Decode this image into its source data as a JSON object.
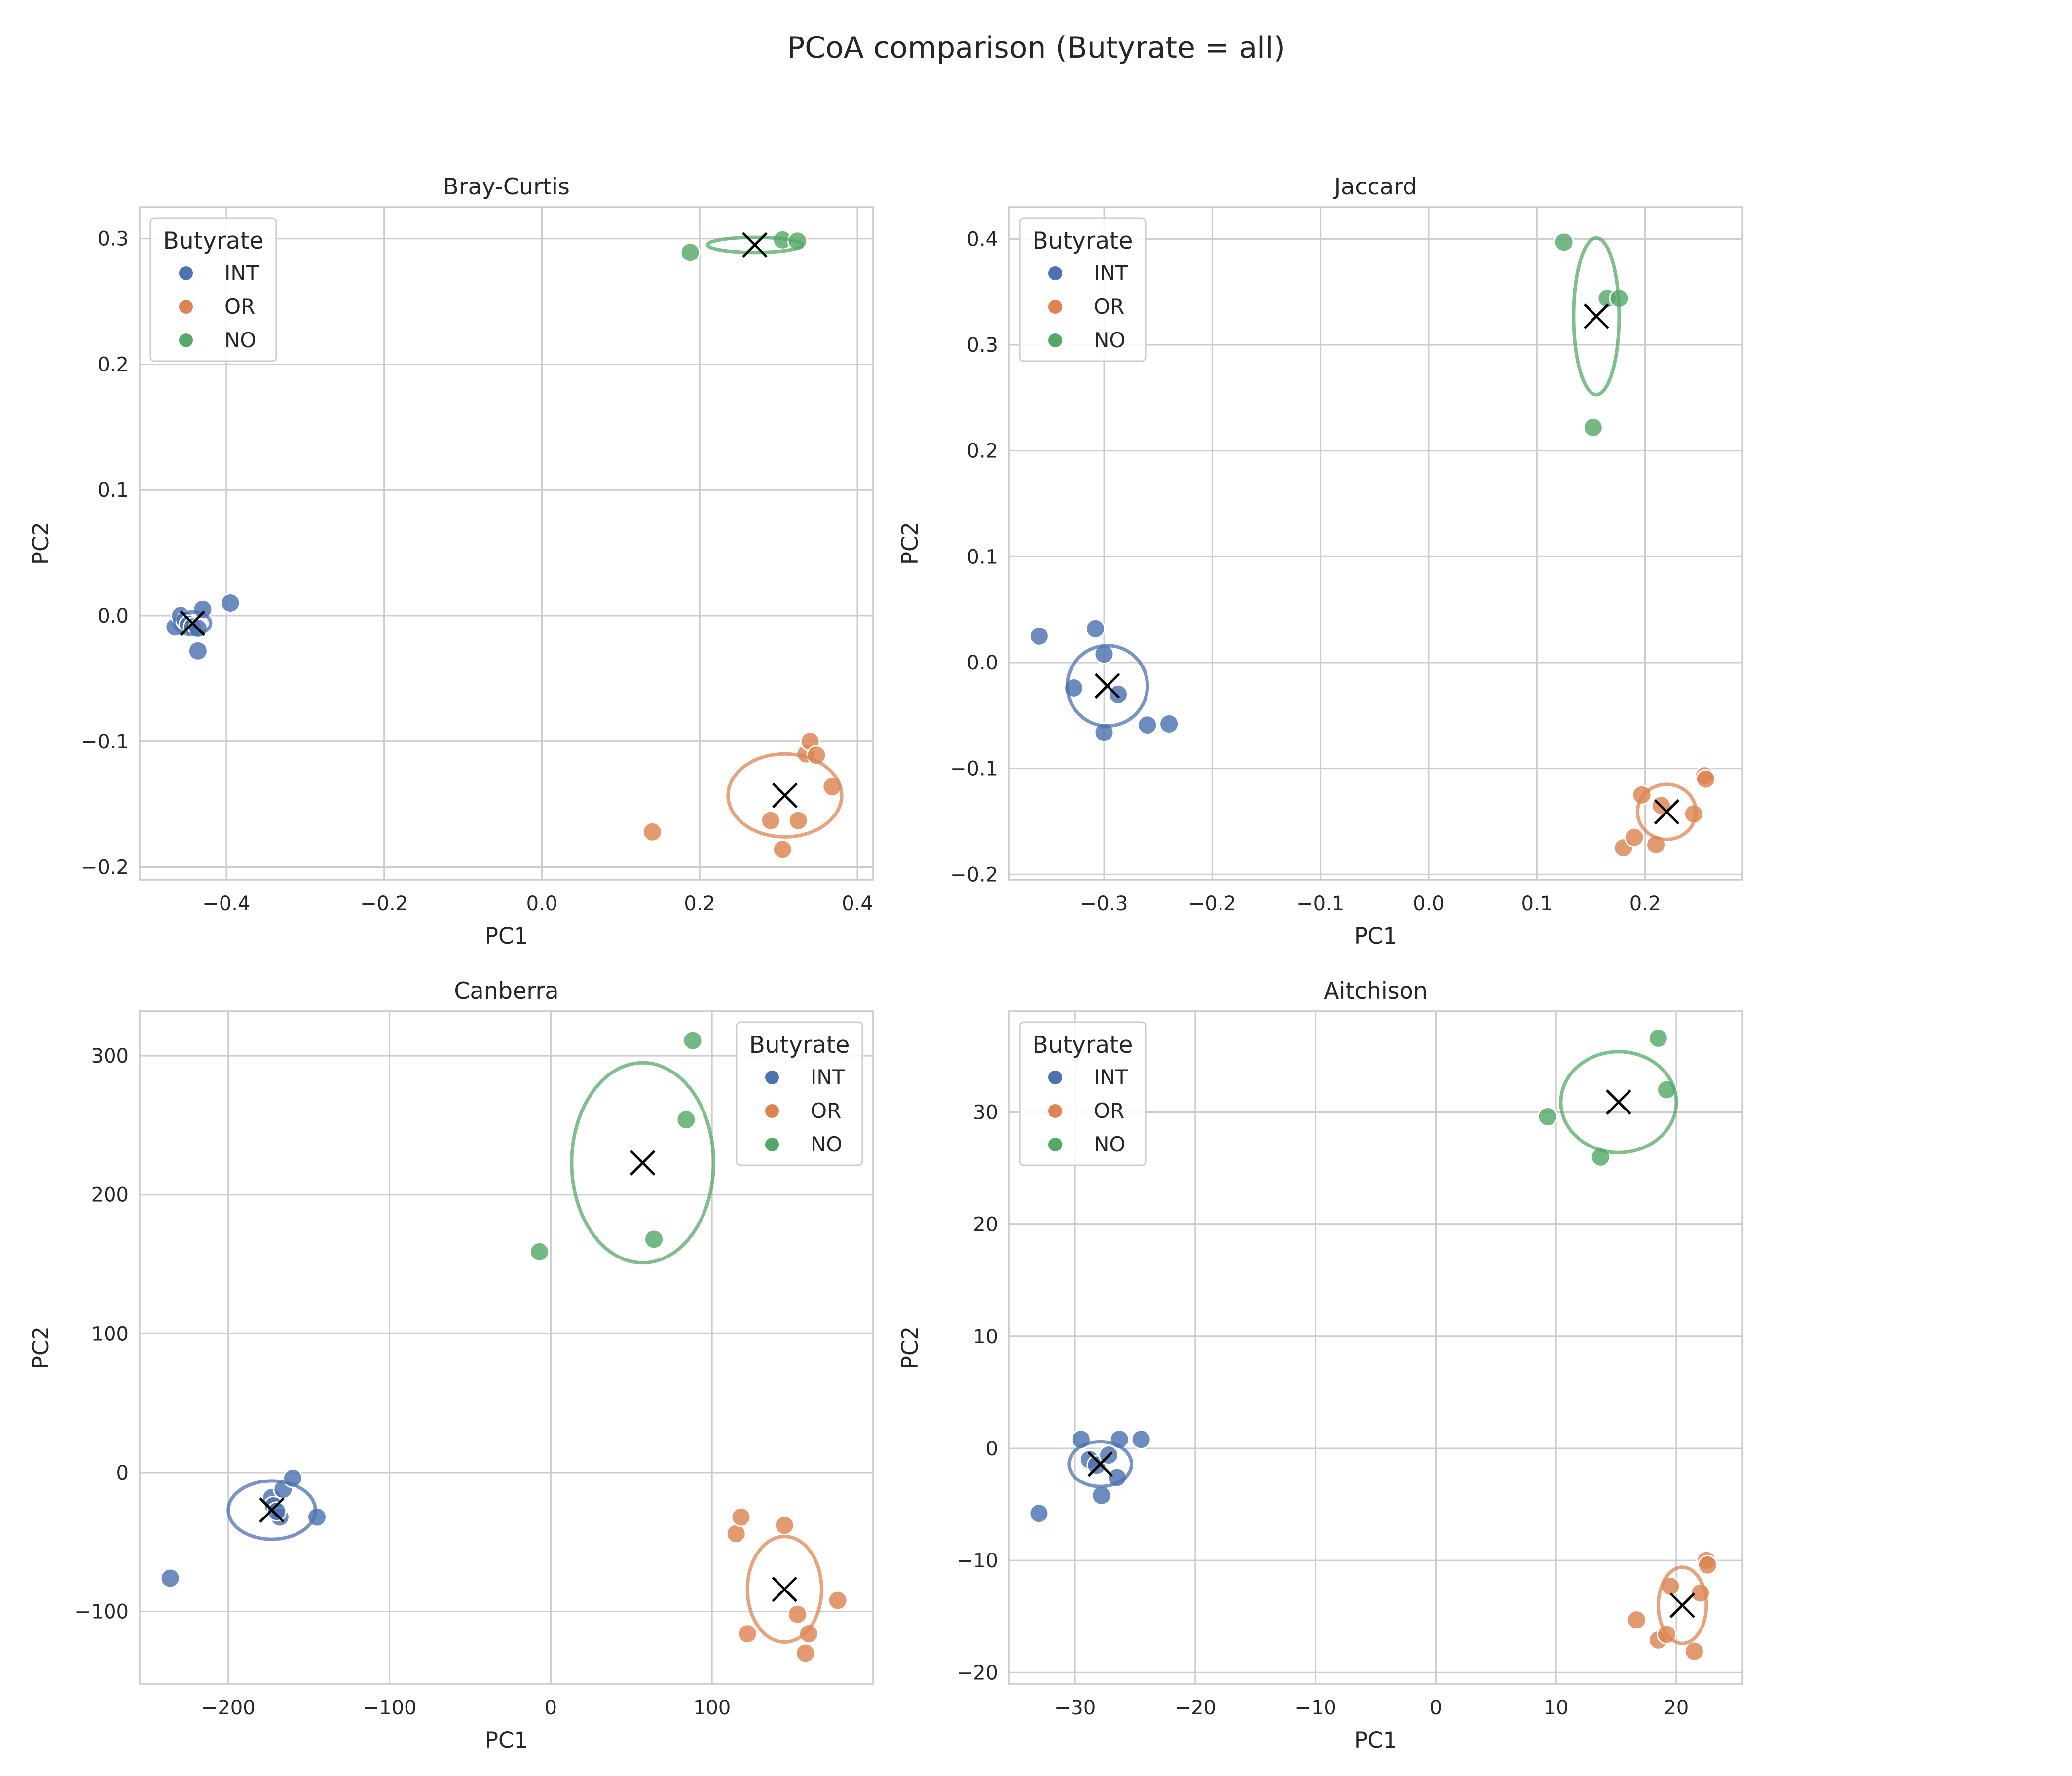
{
  "title": "PCoA comparison (Butyrate = all)",
  "colors": {
    "INT": "#4c72b0",
    "OR": "#dd8452",
    "NO": "#55a868",
    "grid": "#cccccc",
    "frame": "#cccccc",
    "centroid": "#000000"
  },
  "chart_data": [
    {
      "type": "scatter",
      "title": "Bray-Curtis",
      "xlabel": "PC1",
      "ylabel": "PC2",
      "xlim": [
        -0.51,
        0.42
      ],
      "ylim": [
        -0.21,
        0.325
      ],
      "xticks": [
        -0.4,
        -0.2,
        0.0,
        0.2,
        0.4
      ],
      "xtick_labels": [
        "−0.4",
        "−0.2",
        "0.0",
        "0.2",
        "0.4"
      ],
      "yticks": [
        -0.2,
        -0.1,
        0.0,
        0.1,
        0.2,
        0.3
      ],
      "ytick_labels": [
        "−0.2",
        "−0.1",
        "0.0",
        "0.1",
        "0.2",
        "0.3"
      ],
      "grid": true,
      "legend": {
        "title": "Butyrate",
        "position": "top-left",
        "entries": [
          "INT",
          "OR",
          "NO"
        ]
      },
      "series": [
        {
          "name": "INT",
          "points": [
            [
              -0.465,
              -0.009
            ],
            [
              -0.458,
              0.0
            ],
            [
              -0.452,
              -0.004
            ],
            [
              -0.448,
              -0.007
            ],
            [
              -0.443,
              -0.009
            ],
            [
              -0.436,
              -0.01
            ],
            [
              -0.43,
              0.005
            ],
            [
              -0.436,
              -0.028
            ],
            [
              -0.395,
              0.01
            ]
          ],
          "centroid": [
            -0.443,
            -0.006
          ],
          "ellipse": {
            "rx": 0.023,
            "ry": 0.009
          }
        },
        {
          "name": "OR",
          "points": [
            [
              0.14,
              -0.172
            ],
            [
              0.29,
              -0.163
            ],
            [
              0.305,
              -0.186
            ],
            [
              0.325,
              -0.163
            ],
            [
              0.335,
              -0.11
            ],
            [
              0.34,
              -0.1
            ],
            [
              0.348,
              -0.111
            ],
            [
              0.368,
              -0.136
            ]
          ],
          "centroid": [
            0.308,
            -0.143
          ],
          "ellipse": {
            "rx": 0.072,
            "ry": 0.033
          }
        },
        {
          "name": "NO",
          "points": [
            [
              0.188,
              0.289
            ],
            [
              0.305,
              0.299
            ],
            [
              0.324,
              0.298
            ]
          ],
          "centroid": [
            0.27,
            0.295
          ],
          "ellipse": {
            "rx": 0.06,
            "ry": 0.006
          }
        }
      ]
    },
    {
      "type": "scatter",
      "title": "Jaccard",
      "xlabel": "PC1",
      "ylabel": "PC2",
      "xlim": [
        -0.388,
        0.29
      ],
      "ylim": [
        -0.205,
        0.43
      ],
      "xticks": [
        -0.3,
        -0.2,
        -0.1,
        0.0,
        0.1,
        0.2
      ],
      "xtick_labels": [
        "−0.3",
        "−0.2",
        "−0.1",
        "0.0",
        "0.1",
        "0.2"
      ],
      "yticks": [
        -0.2,
        -0.1,
        0.0,
        0.1,
        0.2,
        0.3,
        0.4
      ],
      "ytick_labels": [
        "−0.2",
        "−0.1",
        "0.0",
        "0.1",
        "0.2",
        "0.3",
        "0.4"
      ],
      "grid": true,
      "legend": {
        "title": "Butyrate",
        "position": "top-left",
        "entries": [
          "INT",
          "OR",
          "NO"
        ]
      },
      "series": [
        {
          "name": "INT",
          "points": [
            [
              -0.36,
              0.025
            ],
            [
              -0.328,
              -0.024
            ],
            [
              -0.308,
              0.032
            ],
            [
              -0.3,
              0.008
            ],
            [
              -0.3,
              -0.066
            ],
            [
              -0.287,
              -0.03
            ],
            [
              -0.26,
              -0.059
            ],
            [
              -0.24,
              -0.058
            ]
          ],
          "centroid": [
            -0.297,
            -0.022
          ],
          "ellipse": {
            "rx": 0.037,
            "ry": 0.038
          }
        },
        {
          "name": "OR",
          "points": [
            [
              0.18,
              -0.175
            ],
            [
              0.19,
              -0.165
            ],
            [
              0.197,
              -0.125
            ],
            [
              0.21,
              -0.172
            ],
            [
              0.215,
              -0.135
            ],
            [
              0.245,
              -0.143
            ],
            [
              0.255,
              -0.107
            ],
            [
              0.256,
              -0.11
            ]
          ],
          "centroid": [
            0.22,
            -0.141
          ],
          "ellipse": {
            "rx": 0.027,
            "ry": 0.026
          }
        },
        {
          "name": "NO",
          "points": [
            [
              0.125,
              0.397
            ],
            [
              0.152,
              0.222
            ],
            [
              0.165,
              0.344
            ],
            [
              0.176,
              0.344
            ]
          ],
          "centroid": [
            0.155,
            0.327
          ],
          "ellipse": {
            "rx": 0.021,
            "ry": 0.074
          }
        }
      ]
    },
    {
      "type": "scatter",
      "title": "Canberra",
      "xlabel": "PC1",
      "ylabel": "PC2",
      "xlim": [
        -255,
        200
      ],
      "ylim": [
        -152,
        332
      ],
      "xticks": [
        -200,
        -100,
        0,
        100
      ],
      "xtick_labels": [
        "−200",
        "−100",
        "0",
        "100"
      ],
      "yticks": [
        -100,
        0,
        100,
        200,
        300
      ],
      "ytick_labels": [
        "−100",
        "0",
        "100",
        "200",
        "300"
      ],
      "grid": true,
      "legend": {
        "title": "Butyrate",
        "position": "top-right",
        "entries": [
          "INT",
          "OR",
          "NO"
        ]
      },
      "series": [
        {
          "name": "INT",
          "points": [
            [
              -236,
              -76
            ],
            [
              -173,
              -18
            ],
            [
              -172,
              -24
            ],
            [
              -168,
              -32
            ],
            [
              -166,
              -12
            ],
            [
              -160,
              -4
            ],
            [
              -145,
              -32
            ],
            [
              -170,
              -28
            ]
          ],
          "centroid": [
            -173,
            -27
          ],
          "ellipse": {
            "rx": 27,
            "ry": 21
          }
        },
        {
          "name": "OR",
          "points": [
            [
              115,
              -44
            ],
            [
              118,
              -32
            ],
            [
              122,
              -116
            ],
            [
              145,
              -38
            ],
            [
              153,
              -102
            ],
            [
              158,
              -130
            ],
            [
              160,
              -116
            ],
            [
              178,
              -92
            ]
          ],
          "centroid": [
            145,
            -84
          ],
          "ellipse": {
            "rx": 23,
            "ry": 38
          }
        },
        {
          "name": "NO",
          "points": [
            [
              -7,
              159
            ],
            [
              64,
              168
            ],
            [
              84,
              254
            ],
            [
              88,
              311
            ]
          ],
          "centroid": [
            57,
            223
          ],
          "ellipse": {
            "rx": 44,
            "ry": 72
          }
        }
      ]
    },
    {
      "type": "scatter",
      "title": "Aitchison",
      "xlabel": "PC1",
      "ylabel": "PC2",
      "xlim": [
        -35.5,
        25.5
      ],
      "ylim": [
        -21,
        39
      ],
      "xticks": [
        -30,
        -20,
        -10,
        0,
        10,
        20
      ],
      "xtick_labels": [
        "−30",
        "−20",
        "−10",
        "0",
        "10",
        "20"
      ],
      "yticks": [
        -20,
        -10,
        0,
        10,
        20,
        30
      ],
      "ytick_labels": [
        "−20",
        "−10",
        "0",
        "10",
        "20",
        "30"
      ],
      "grid": true,
      "legend": {
        "title": "Butyrate",
        "position": "top-left",
        "entries": [
          "INT",
          "OR",
          "NO"
        ]
      },
      "series": [
        {
          "name": "INT",
          "points": [
            [
              -33,
              -5.8
            ],
            [
              -29.5,
              0.8
            ],
            [
              -28.8,
              -1.0
            ],
            [
              -28.2,
              -1.5
            ],
            [
              -27.8,
              -4.2
            ],
            [
              -27.2,
              -0.6
            ],
            [
              -26.5,
              -2.6
            ],
            [
              -26.3,
              0.8
            ],
            [
              -24.5,
              0.8
            ]
          ],
          "centroid": [
            -27.9,
            -1.4
          ],
          "ellipse": {
            "rx": 2.6,
            "ry": 2.0
          }
        },
        {
          "name": "OR",
          "points": [
            [
              16.7,
              -15.3
            ],
            [
              18.5,
              -17.1
            ],
            [
              19.2,
              -16.6
            ],
            [
              19.5,
              -12.3
            ],
            [
              21.5,
              -18.1
            ],
            [
              22.0,
              -12.9
            ],
            [
              22.5,
              -10.0
            ],
            [
              22.6,
              -10.4
            ]
          ],
          "centroid": [
            20.5,
            -14.0
          ],
          "ellipse": {
            "rx": 2.0,
            "ry": 3.4
          }
        },
        {
          "name": "NO",
          "points": [
            [
              9.3,
              29.6
            ],
            [
              13.7,
              26.0
            ],
            [
              18.5,
              36.6
            ],
            [
              19.2,
              32.0
            ]
          ],
          "centroid": [
            15.2,
            30.9
          ],
          "ellipse": {
            "rx": 4.8,
            "ry": 4.5
          }
        }
      ]
    }
  ]
}
